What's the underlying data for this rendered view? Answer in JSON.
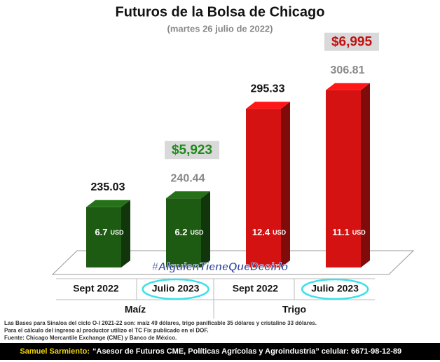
{
  "chart_data": {
    "type": "bar3d",
    "title": "Futuros de la Bolsa de Chicago",
    "subtitle": "(martes 26 julio de 2022)",
    "categories": [
      "Sept 2022",
      "Julio 2023",
      "Sept 2022",
      "Julio 2023"
    ],
    "group_labels": [
      "Maíz",
      "Trigo"
    ],
    "values": [
      235.03,
      240.44,
      295.33,
      306.81
    ],
    "colors": [
      "#1d5a12",
      "#1d5a12",
      "#d41212",
      "#d41212"
    ],
    "ylim": [
      198,
      320
    ],
    "basis": {
      "values": [
        6.7,
        6.2,
        12.4,
        11.1
      ],
      "unit": "USD"
    },
    "income": {
      "values": [
        null,
        5923,
        null,
        6995
      ],
      "value_labels": [
        null,
        "$5,923",
        null,
        "$6,995"
      ],
      "colors": [
        null,
        "#1f8a1a",
        null,
        "#c21010"
      ]
    },
    "annotation": "#AlguienTieneQueDecirlo",
    "notes": [
      "Las Bases para Sinaloa del ciclo O-I 2021-22 son: maíz 49 dólares, trigo panificable 35 dólares y cristalino 33 dólares.",
      "Para el cálculo del ingreso al productor utilizo el TC Fix publicado en el DOF.",
      "Fuente: Chicago Mercantile Exchange (CME) y Banco de México."
    ],
    "footer": {
      "author": "Samuel Sarmiento:",
      "text": "“Asesor de Futuros CME, Políticas Agrícolas y Agroindustria”  celular: 6671-98-12-89"
    }
  }
}
